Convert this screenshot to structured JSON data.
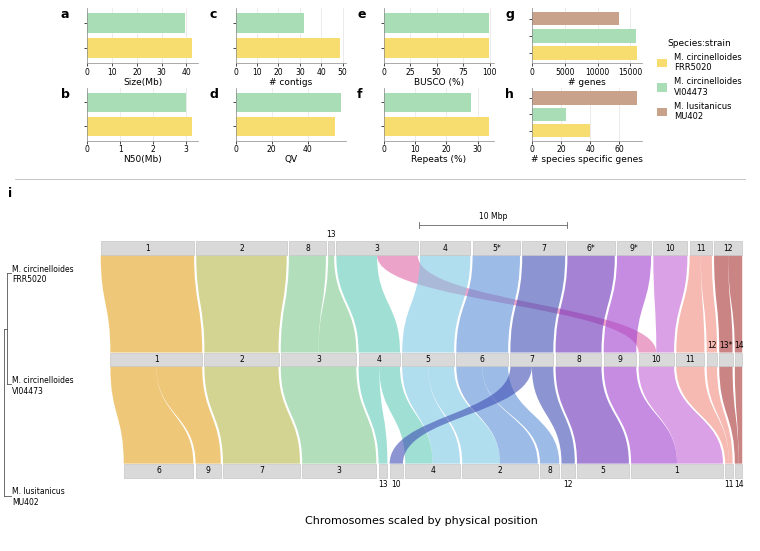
{
  "chart_data": [
    {
      "type": "bar",
      "title": "a",
      "orientation": "horizontal",
      "xlabel": "Size(Mb)",
      "categories": [
        null,
        null
      ],
      "values": [
        42.5,
        39.5
      ],
      "colors": [
        "#F7DC6F",
        "#A8DDB5"
      ],
      "xlim": [
        0,
        44.6
      ],
      "xticks": [
        0,
        10,
        20,
        30,
        40
      ],
      "grid": true,
      "tick_labels": "x"
    },
    {
      "type": "bar",
      "title": "b",
      "orientation": "horizontal",
      "xlabel": "N50(Mb)",
      "categories": [
        null,
        null
      ],
      "values": [
        3.2,
        3.0
      ],
      "colors": [
        "#F7DC6F",
        "#A8DDB5"
      ],
      "xlim": [
        0,
        3.36
      ],
      "xticks": [
        0,
        1,
        2,
        3
      ],
      "grid": true,
      "tick_labels": "x"
    },
    {
      "type": "bar",
      "title": "c",
      "orientation": "horizontal",
      "xlabel": "# contigs",
      "categories": [
        null,
        null
      ],
      "values": [
        49,
        32
      ],
      "colors": [
        "#F7DC6F",
        "#A8DDB5"
      ],
      "xlim": [
        0,
        51.5
      ],
      "xticks": [
        0,
        10,
        20,
        30,
        40,
        50
      ],
      "grid": true,
      "tick_labels": "x"
    },
    {
      "type": "bar",
      "title": "d",
      "orientation": "horizontal",
      "xlabel": "QV",
      "categories": [
        null,
        null
      ],
      "values": [
        55,
        58
      ],
      "colors": [
        "#F7DC6F",
        "#A8DDB5"
      ],
      "xlim": [
        0,
        60.9
      ],
      "xticks": [
        0,
        20,
        40
      ],
      "grid": true,
      "tick_labels": "x"
    },
    {
      "type": "bar",
      "title": "e",
      "orientation": "horizontal",
      "xlabel": "BUSCO (%)",
      "categories": [
        null,
        null
      ],
      "values": [
        99,
        99.2
      ],
      "colors": [
        "#F7DC6F",
        "#A8DDB5"
      ],
      "xlim": [
        0,
        104.2
      ],
      "xticks": [
        0,
        25,
        50,
        75,
        100
      ],
      "grid": true,
      "tick_labels": "x"
    },
    {
      "type": "bar",
      "title": "f",
      "orientation": "horizontal",
      "xlabel": "Repeats (%)",
      "categories": [
        null,
        null
      ],
      "values": [
        33.5,
        28
      ],
      "colors": [
        "#F7DC6F",
        "#A8DDB5"
      ],
      "xlim": [
        0,
        35.2
      ],
      "xticks": [
        0,
        10,
        20,
        30
      ],
      "grid": true,
      "tick_labels": "x"
    },
    {
      "type": "bar",
      "title": "g",
      "orientation": "horizontal",
      "xlabel": "# genes",
      "categories": [
        null,
        null,
        null
      ],
      "values": [
        16000,
        15800,
        13300
      ],
      "colors": [
        "#F7DC6F",
        "#A8DDB5",
        "#C9A28C"
      ],
      "xlim": [
        0,
        16800
      ],
      "xticks": [
        0,
        5000,
        10000,
        15000
      ],
      "grid": true,
      "tick_labels": "x"
    },
    {
      "type": "bar",
      "title": "h",
      "orientation": "horizontal",
      "xlabel": "# species specific genes",
      "categories": [
        null,
        null,
        null
      ],
      "values": [
        40,
        23,
        72
      ],
      "colors": [
        "#F7DC6F",
        "#A8DDB5",
        "#C9A28C"
      ],
      "xlim": [
        0,
        75.6
      ],
      "xticks": [
        0,
        20,
        40,
        60
      ],
      "grid": true,
      "tick_labels": "x"
    }
  ],
  "legend": {
    "title": "Species:strain",
    "entries": [
      {
        "species": "M. circinelloides",
        "strain": "FRR5020",
        "color": "#F7DC6F"
      },
      {
        "species": "M. circinelloides",
        "strain": "VI04473",
        "color": "#A8DDB5"
      },
      {
        "species": "M. lusitanicus",
        "strain": "MU402",
        "color": "#C9A28C"
      }
    ]
  },
  "synteny": {
    "title": "i",
    "xlabel": "Chromosomes scaled by physical position",
    "scale_bar": {
      "length": 10,
      "label": "10 Mbp"
    },
    "genomes": [
      {
        "species": "M. circinelloides",
        "strain": "FRR5020",
        "chromosomes": [
          {
            "label": "1",
            "length": 6.3
          },
          {
            "label": "2",
            "length": 6.1
          },
          {
            "label": "8",
            "length": 2.5
          },
          {
            "label": "13",
            "length": 0.4
          },
          {
            "label": "3",
            "length": 5.5
          },
          {
            "label": "4",
            "length": 3.4
          },
          {
            "label": "5*",
            "length": 3.2
          },
          {
            "label": "7",
            "length": 2.9
          },
          {
            "label": "6*",
            "length": 3.2
          },
          {
            "label": "9*",
            "length": 2.3
          },
          {
            "label": "10",
            "length": 2.3
          },
          {
            "label": "11",
            "length": 1.5
          },
          {
            "label": "12",
            "length": 1.9
          }
        ]
      },
      {
        "species": "M. circinelloides",
        "strain": "VI04473",
        "chromosomes": [
          {
            "label": "1",
            "length": 6.2
          },
          {
            "label": "2",
            "length": 5.0
          },
          {
            "label": "3",
            "length": 5.1
          },
          {
            "label": "4",
            "length": 2.8
          },
          {
            "label": "5",
            "length": 3.5
          },
          {
            "label": "6",
            "length": 3.5
          },
          {
            "label": "7",
            "length": 2.9
          },
          {
            "label": "8",
            "length": 3.1
          },
          {
            "label": "9",
            "length": 2.2
          },
          {
            "label": "10",
            "length": 2.4
          },
          {
            "label": "11",
            "length": 1.9
          },
          {
            "label": "12",
            "length": 0.7
          },
          {
            "label": "13*",
            "length": 0.9
          },
          {
            "label": "14",
            "length": 0.5
          }
        ]
      },
      {
        "species": "M. lusitanicus",
        "strain": "MU402",
        "chromosomes": [
          {
            "label": "6",
            "length": 4.7
          },
          {
            "label": "9",
            "length": 1.7
          },
          {
            "label": "7",
            "length": 5.2
          },
          {
            "label": "3",
            "length": 5.0
          },
          {
            "label": "13",
            "length": 0.6
          },
          {
            "label": "10",
            "length": 0.9
          },
          {
            "label": "4",
            "length": 3.7
          },
          {
            "label": "2",
            "length": 5.1
          },
          {
            "label": "8",
            "length": 1.3
          },
          {
            "label": "12",
            "length": 0.9
          },
          {
            "label": "5",
            "length": 3.5
          },
          {
            "label": "1",
            "length": 6.2
          },
          {
            "label": "11",
            "length": 0.5
          },
          {
            "label": "14",
            "length": 0.5
          }
        ]
      }
    ],
    "links": [
      {
        "pair": [
          0,
          1
        ],
        "from": "1",
        "to": "1",
        "color": "#E5A21E"
      },
      {
        "pair": [
          0,
          1
        ],
        "from": "2",
        "to": "2",
        "color": "#B8B84A"
      },
      {
        "pair": [
          0,
          1
        ],
        "from": "8",
        "to": "3",
        "color": "#7FC98F"
      },
      {
        "pair": [
          0,
          1
        ],
        "from": "13",
        "to": "3",
        "color": "#7FC98F"
      },
      {
        "pair": [
          0,
          1
        ],
        "from": "3",
        "to": "4",
        "color": "#5FCBB8"
      },
      {
        "pair": [
          0,
          1
        ],
        "from": "3",
        "to": "10",
        "color": "#E066A8"
      },
      {
        "pair": [
          0,
          1
        ],
        "from": "4",
        "to": "5",
        "color": "#7EC8E3"
      },
      {
        "pair": [
          0,
          1
        ],
        "from": "5*",
        "to": "6",
        "color": "#5B8FD6"
      },
      {
        "pair": [
          0,
          1
        ],
        "from": "7",
        "to": "7",
        "color": "#3F4FB5"
      },
      {
        "pair": [
          0,
          1
        ],
        "from": "6*",
        "to": "8",
        "color": "#6A2FB8"
      },
      {
        "pair": [
          0,
          1
        ],
        "from": "9*",
        "to": "9",
        "color": "#A040D0"
      },
      {
        "pair": [
          0,
          1
        ],
        "from": "10",
        "to": "10",
        "color": "#C462D8"
      },
      {
        "pair": [
          0,
          1
        ],
        "from": "11",
        "to": "11",
        "color": "#F08C80"
      },
      {
        "pair": [
          0,
          1
        ],
        "from": "11",
        "to": "12",
        "color": "#F08C80"
      },
      {
        "pair": [
          0,
          1
        ],
        "from": "12",
        "to": "13*",
        "color": "#A83232"
      },
      {
        "pair": [
          0,
          1
        ],
        "from": "12",
        "to": "14",
        "color": "#A83232"
      },
      {
        "pair": [
          1,
          2
        ],
        "from": "1",
        "to": "6",
        "color": "#E5A21E"
      },
      {
        "pair": [
          1,
          2
        ],
        "from": "1",
        "to": "9",
        "color": "#E5A21E"
      },
      {
        "pair": [
          1,
          2
        ],
        "from": "2",
        "to": "7",
        "color": "#B8B84A"
      },
      {
        "pair": [
          1,
          2
        ],
        "from": "3",
        "to": "3",
        "color": "#7FC98F"
      },
      {
        "pair": [
          1,
          2
        ],
        "from": "4",
        "to": "13",
        "color": "#5FCBB8"
      },
      {
        "pair": [
          1,
          2
        ],
        "from": "4",
        "to": "4",
        "color": "#5FCBB8"
      },
      {
        "pair": [
          1,
          2
        ],
        "from": "5",
        "to": "4",
        "color": "#7EC8E3"
      },
      {
        "pair": [
          1,
          2
        ],
        "from": "5",
        "to": "2",
        "color": "#7EC8E3"
      },
      {
        "pair": [
          1,
          2
        ],
        "from": "6",
        "to": "2",
        "color": "#5B8FD6"
      },
      {
        "pair": [
          1,
          2
        ],
        "from": "6",
        "to": "8",
        "color": "#5B8FD6"
      },
      {
        "pair": [
          1,
          2
        ],
        "from": "7",
        "to": "12",
        "color": "#3F4FB5"
      },
      {
        "pair": [
          1,
          2
        ],
        "from": "7",
        "to": "10",
        "color": "#3F4FB5"
      },
      {
        "pair": [
          1,
          2
        ],
        "from": "8",
        "to": "5",
        "color": "#6A2FB8"
      },
      {
        "pair": [
          1,
          2
        ],
        "from": "9",
        "to": "1",
        "color": "#A040D0"
      },
      {
        "pair": [
          1,
          2
        ],
        "from": "10",
        "to": "1",
        "color": "#C462D8"
      },
      {
        "pair": [
          1,
          2
        ],
        "from": "11",
        "to": "11",
        "color": "#F08C80"
      },
      {
        "pair": [
          1,
          2
        ],
        "from": "12",
        "to": "11",
        "color": "#F08C80"
      },
      {
        "pair": [
          1,
          2
        ],
        "from": "13*",
        "to": "14",
        "color": "#A83232"
      },
      {
        "pair": [
          1,
          2
        ],
        "from": "14",
        "to": "14",
        "color": "#A83232"
      }
    ]
  }
}
